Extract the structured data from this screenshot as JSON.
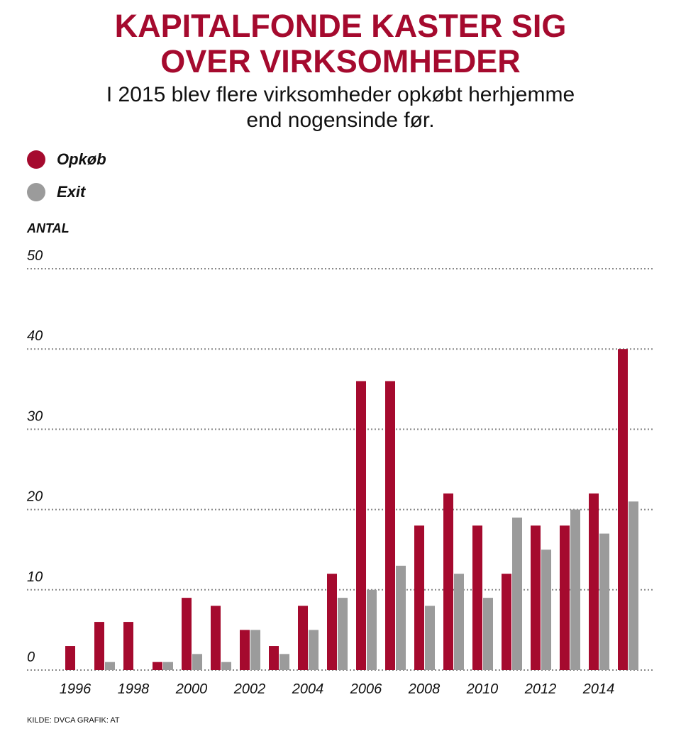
{
  "header": {
    "title_line1": "KAPITALFONDE KASTER SIG",
    "title_line2": "OVER VIRKSOMHEDER",
    "subtitle_line1": "I 2015 blev flere virksomheder opkøbt herhjemme",
    "subtitle_line2": "end nogensinde før."
  },
  "footer": {
    "source": "KILDE: DVCA  GRAFIK: AT"
  },
  "chart_data": {
    "type": "bar",
    "title": "KAPITALFONDE KASTER SIG OVER VIRKSOMHEDER",
    "ylabel": "ANTAL",
    "xlabel": "",
    "ylim": [
      0,
      50
    ],
    "yticks": [
      0,
      10,
      20,
      30,
      40,
      50
    ],
    "grid": true,
    "legend_position": "top-left",
    "categories": [
      1996,
      1997,
      1998,
      1999,
      2000,
      2001,
      2002,
      2003,
      2004,
      2005,
      2006,
      2007,
      2008,
      2009,
      2010,
      2011,
      2012,
      2013,
      2014,
      2015
    ],
    "xtick_labels": [
      "1996",
      "1998",
      "2000",
      "2002",
      "2004",
      "2006",
      "2008",
      "2010",
      "2012",
      "2014"
    ],
    "series": [
      {
        "name": "Opkøb",
        "color": "#a50a2e",
        "values": [
          3,
          6,
          6,
          1,
          9,
          8,
          5,
          3,
          8,
          12,
          36,
          36,
          18,
          22,
          18,
          12,
          18,
          18,
          22,
          40
        ]
      },
      {
        "name": "Exit",
        "color": "#9b9b9b",
        "values": [
          0,
          1,
          0,
          1,
          2,
          1,
          5,
          2,
          5,
          9,
          10,
          13,
          8,
          12,
          9,
          19,
          15,
          20,
          17,
          21
        ]
      }
    ]
  }
}
